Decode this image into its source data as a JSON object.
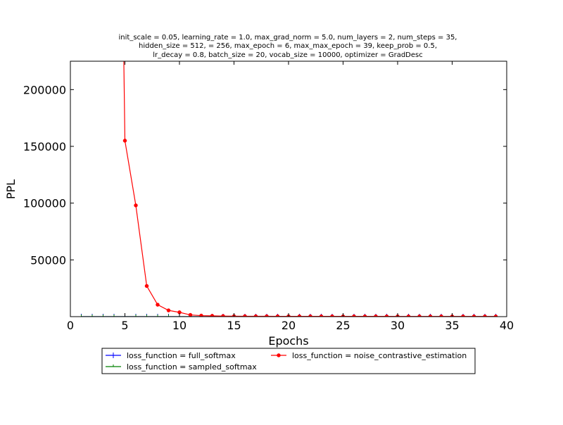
{
  "chart_data": {
    "type": "line",
    "title_lines": [
      "init_scale = 0.05, learning_rate = 1.0, max_grad_norm = 5.0, num_layers = 2, num_steps = 35,",
      "hidden_size = 512,    = 256, max_epoch = 6, max_max_epoch = 39, keep_prob = 0.5,",
      "lr_decay = 0.8, batch_size = 20, vocab_size = 10000, optimizer = GradDesc"
    ],
    "xlabel": "Epochs",
    "ylabel": "PPL",
    "xlim": [
      0,
      40
    ],
    "ylim": [
      0,
      225000
    ],
    "xticks": [
      0,
      5,
      10,
      15,
      20,
      25,
      30,
      35,
      40
    ],
    "yticks": [
      50000,
      100000,
      150000,
      200000
    ],
    "grid": false,
    "legend_position": "below-center",
    "series": [
      {
        "name": "loss_function = full_softmax",
        "color": "#0000ff",
        "marker": "plus",
        "x": [
          1,
          2,
          3,
          4,
          5,
          6,
          7,
          8,
          9,
          10,
          11,
          12,
          13,
          14,
          15,
          16,
          17,
          18,
          19,
          20,
          21,
          22,
          23,
          24,
          25,
          26,
          27,
          28,
          29,
          30,
          31,
          32,
          33,
          34,
          35,
          36,
          37,
          38,
          39
        ],
        "y": [
          0,
          0,
          0,
          0,
          0,
          0,
          0,
          0,
          0,
          0,
          0,
          0,
          0,
          0,
          0,
          0,
          0,
          0,
          0,
          0,
          0,
          0,
          0,
          0,
          0,
          0,
          0,
          0,
          0,
          0,
          0,
          0,
          0,
          0,
          0,
          0,
          0,
          0,
          0
        ]
      },
      {
        "name": "loss_function = sampled_softmax",
        "color": "#008000",
        "marker": "tick",
        "x": [
          1,
          2,
          3,
          4,
          5,
          6,
          7,
          8,
          9,
          10,
          11,
          12,
          13,
          14,
          15,
          16,
          17,
          18,
          19,
          20,
          21,
          22,
          23,
          24,
          25,
          26,
          27,
          28,
          29,
          30,
          31,
          32,
          33,
          34,
          35,
          36,
          37,
          38,
          39
        ],
        "y": [
          0,
          0,
          0,
          0,
          0,
          0,
          0,
          0,
          0,
          0,
          0,
          0,
          0,
          0,
          0,
          0,
          0,
          0,
          0,
          0,
          0,
          0,
          0,
          0,
          0,
          0,
          0,
          0,
          0,
          0,
          0,
          0,
          0,
          0,
          0,
          0,
          0,
          0,
          0
        ]
      },
      {
        "name": "loss_function = noise_contrastive_estimation",
        "color": "#ff0000",
        "marker": "dot",
        "x": [
          4.9,
          5,
          6,
          7,
          8,
          9,
          10,
          11,
          12,
          13,
          14,
          15,
          16,
          17,
          18,
          19,
          20,
          21,
          22,
          23,
          24,
          25,
          26,
          27,
          28,
          29,
          30,
          31,
          32,
          33,
          34,
          35,
          36,
          37,
          38,
          39
        ],
        "y": [
          225000,
          155000,
          98000,
          27000,
          10500,
          5500,
          3800,
          1500,
          900,
          700,
          500,
          400,
          350,
          320,
          300,
          280,
          270,
          260,
          250,
          240,
          235,
          230,
          225,
          220,
          215,
          210,
          205,
          200,
          200,
          195,
          195,
          190,
          190,
          185,
          185,
          180
        ]
      }
    ]
  }
}
